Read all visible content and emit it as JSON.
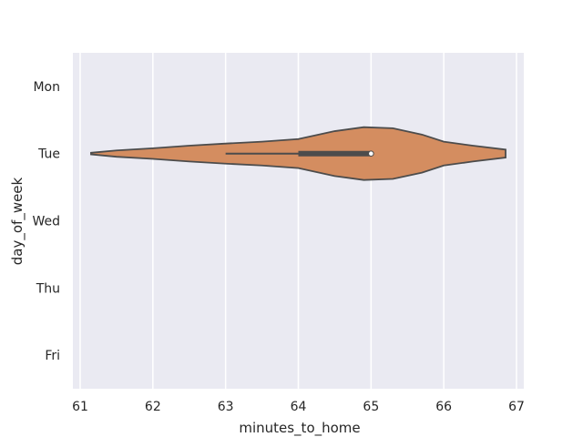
{
  "chart_data": {
    "type": "violin",
    "orientation": "horizontal",
    "xlabel": "minutes_to_home",
    "ylabel": "day_of_week",
    "categories": [
      "Mon",
      "Tue",
      "Wed",
      "Thu",
      "Fri"
    ],
    "x_ticks": [
      61,
      62,
      63,
      64,
      65,
      66,
      67
    ],
    "x_tick_labels": [
      "61",
      "62",
      "63",
      "64",
      "65",
      "66",
      "67"
    ],
    "xlim": [
      60.9,
      67.1
    ],
    "grid": true,
    "background_color": "#eaeaf2",
    "violin_fill": "#d48d60",
    "violin_stroke": "#4c4c4c",
    "violins": [
      {
        "category": "Tue",
        "min": 63.0,
        "q1": 64.0,
        "median": 65.0,
        "q3": 65.0,
        "max": 65.0,
        "range": [
          61.15,
          66.85
        ],
        "density_profile": [
          [
            61.15,
            0.03
          ],
          [
            61.5,
            0.12
          ],
          [
            62.0,
            0.2
          ],
          [
            62.5,
            0.3
          ],
          [
            63.0,
            0.38
          ],
          [
            63.5,
            0.45
          ],
          [
            64.0,
            0.55
          ],
          [
            64.5,
            0.85
          ],
          [
            64.9,
            1.0
          ],
          [
            65.3,
            0.96
          ],
          [
            65.7,
            0.72
          ],
          [
            66.0,
            0.45
          ],
          [
            66.4,
            0.3
          ],
          [
            66.85,
            0.15
          ]
        ]
      }
    ]
  }
}
